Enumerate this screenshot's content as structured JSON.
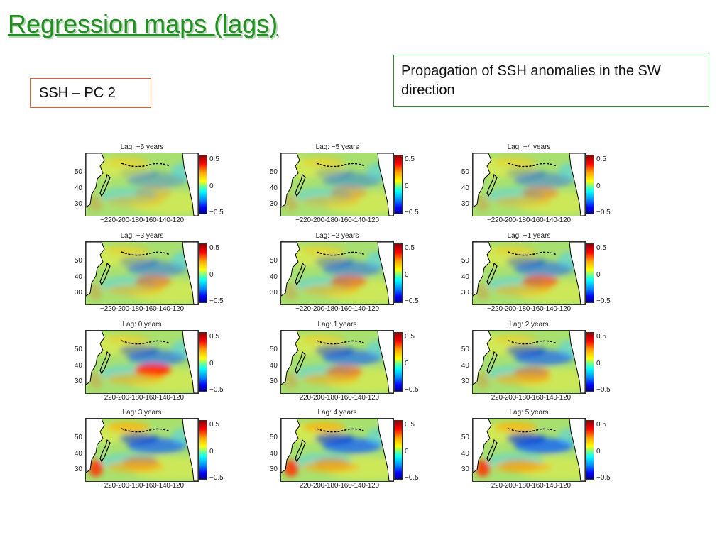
{
  "slide": {
    "title": "Regression maps (lags)",
    "label_box": "SSH – PC 2",
    "note_box": "Propagation of SSH anomalies in the SW direction"
  },
  "figure": {
    "x_tick_label": "−220-200-180-160-140-120",
    "y_ticks": [
      "50",
      "40",
      "30"
    ],
    "colorbar_ticks": [
      "0.5",
      "0",
      "−0.5"
    ],
    "colormap": [
      "#000090",
      "#0000ff",
      "#00ffff",
      "#ffff00",
      "#ff0000",
      "#900000"
    ],
    "land_color": "#ffffff",
    "panels": [
      {
        "title": "Lag: −6 years"
      },
      {
        "title": "Lag: −5 years"
      },
      {
        "title": "Lag: −4 years"
      },
      {
        "title": "Lag: −3 years"
      },
      {
        "title": "Lag: −2 years"
      },
      {
        "title": "Lag: −1 years"
      },
      {
        "title": "Lag: 0 years"
      },
      {
        "title": "Lag: 1 years"
      },
      {
        "title": "Lag: 2 years"
      },
      {
        "title": "Lag: 3 years"
      },
      {
        "title": "Lag: 4 years"
      },
      {
        "title": "Lag: 5 years"
      }
    ]
  }
}
